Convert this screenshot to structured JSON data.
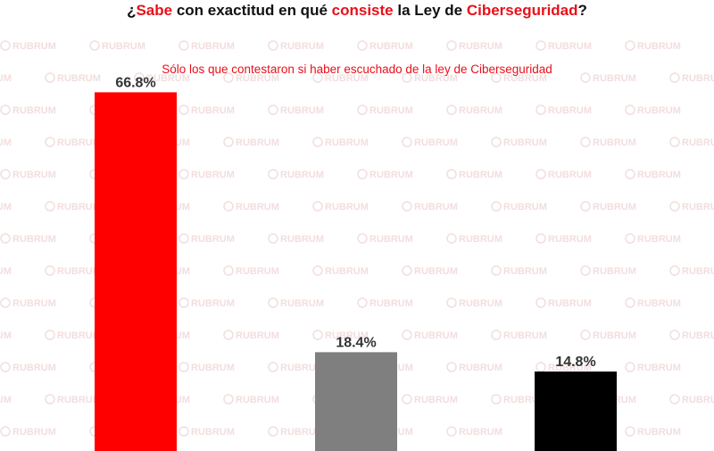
{
  "header": {
    "title_parts": [
      {
        "text": "¿",
        "highlight": false
      },
      {
        "text": "Sabe",
        "highlight": true
      },
      {
        "text": " con exactitud en qué ",
        "highlight": false
      },
      {
        "text": "consiste",
        "highlight": true
      },
      {
        "text": " la Ley de ",
        "highlight": false
      },
      {
        "text": "Ciberseguridad",
        "highlight": true
      },
      {
        "text": "?",
        "highlight": false
      }
    ],
    "subtitle": "Sólo los que contestaron si haber escuchado de la ley de Ciberseguridad"
  },
  "watermark": {
    "text": "RUBRUM",
    "color": "#f2dede"
  },
  "colors": {
    "accent": "#e8101a",
    "title": "#111111"
  },
  "chart_data": {
    "type": "bar",
    "categories": [
      "",
      "",
      ""
    ],
    "values": [
      66.8,
      18.4,
      14.8
    ],
    "value_labels": [
      "66.8%",
      "18.4%",
      "14.8%"
    ],
    "colors": [
      "#ff0000",
      "#7f7f7f",
      "#000000"
    ],
    "ylim": [
      0,
      79
    ],
    "grid": false,
    "title": "¿Sabe con exactitud en qué consiste la Ley de Ciberseguridad?",
    "subtitle": "Sólo los que contestaron si haber escuchado de la ley de Ciberseguridad"
  }
}
